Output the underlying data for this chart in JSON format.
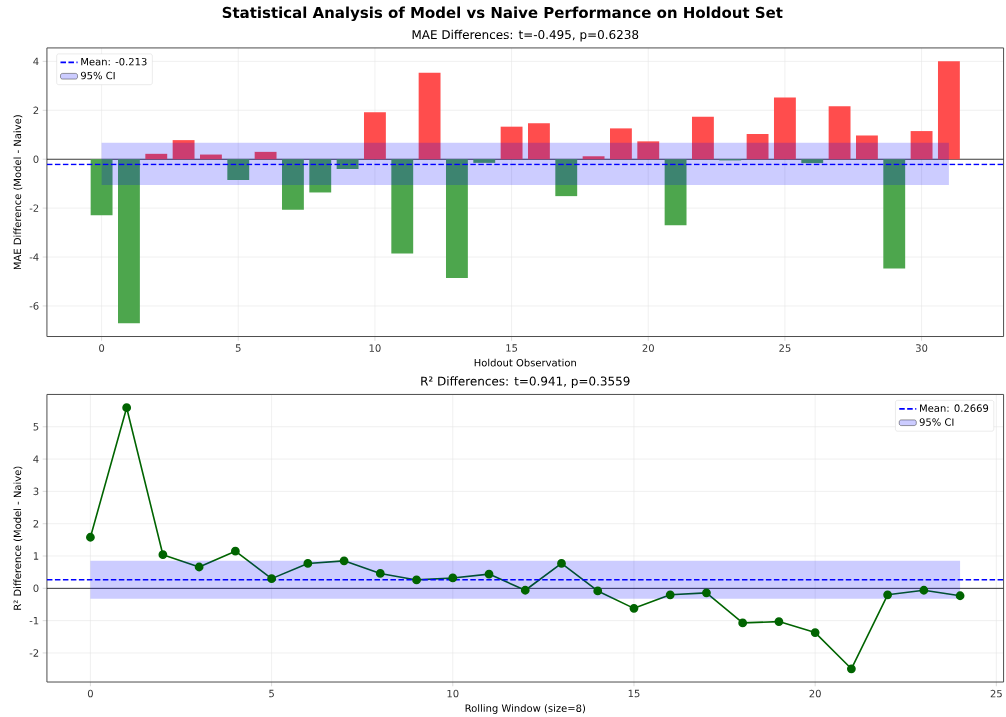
{
  "chart_data": [
    {
      "type": "bar",
      "title": "Statistical Analysis of Model vs Naive Performance on Holdout Set",
      "subtitle": "MAE Differences: t=-0.495, p=0.6238",
      "xlabel": "Holdout Observation",
      "ylabel": "MAE Difference (Model - Naive)",
      "x": [
        0,
        1,
        2,
        3,
        4,
        5,
        6,
        7,
        8,
        9,
        10,
        11,
        12,
        13,
        14,
        15,
        16,
        17,
        18,
        19,
        20,
        21,
        22,
        23,
        24,
        25,
        26,
        27,
        28,
        29,
        30,
        31
      ],
      "values": [
        -2.29,
        -6.71,
        0.22,
        0.78,
        0.19,
        -0.85,
        0.3,
        -2.07,
        -1.36,
        -0.4,
        1.92,
        -3.86,
        3.53,
        -4.86,
        -0.15,
        1.33,
        1.47,
        -1.51,
        0.12,
        1.26,
        0.73,
        -2.7,
        1.74,
        -0.05,
        1.03,
        2.52,
        -0.16,
        2.16,
        0.97,
        -4.47,
        1.15,
        4.01
      ],
      "colors": [
        "#4da64d",
        "#4da64d",
        "#ff4d4d",
        "#ff4d4d",
        "#ff4d4d",
        "#4da64d",
        "#ff4d4d",
        "#4da64d",
        "#4da64d",
        "#4da64d",
        "#ff4d4d",
        "#4da64d",
        "#ff4d4d",
        "#4da64d",
        "#4da64d",
        "#ff4d4d",
        "#ff4d4d",
        "#4da64d",
        "#ff4d4d",
        "#ff4d4d",
        "#ff4d4d",
        "#4da64d",
        "#ff4d4d",
        "#4da64d",
        "#ff4d4d",
        "#ff4d4d",
        "#4da64d",
        "#ff4d4d",
        "#ff4d4d",
        "#4da64d",
        "#ff4d4d",
        "#ff4d4d"
      ],
      "xlim": [
        -2,
        33
      ],
      "ylim": [
        -7.25,
        4.55
      ],
      "xticks": [
        0,
        5,
        10,
        15,
        20,
        25,
        30
      ],
      "yticks": [
        -6,
        -4,
        -2,
        0,
        2,
        4
      ],
      "ref_lines": [
        {
          "axis": "y",
          "value": 0,
          "color": "#000000",
          "line_style": "solid"
        },
        {
          "axis": "y",
          "value": -0.213,
          "label": "Mean: -0.213",
          "color": "#0000ff",
          "line_style": "dashed"
        }
      ],
      "bands": [
        {
          "axis": "y",
          "from": -1.05,
          "to": 0.67,
          "label": "95% CI",
          "color": "#0000ff"
        }
      ],
      "grid": true,
      "legend": "top left"
    },
    {
      "type": "line",
      "title": "R² Differences: t=0.941, p=0.3559",
      "xlabel": "Rolling Window (size=8)",
      "ylabel": "R² Difference (Model - Naive)",
      "x": [
        0,
        1,
        2,
        3,
        4,
        5,
        6,
        7,
        8,
        9,
        10,
        11,
        12,
        13,
        14,
        15,
        16,
        17,
        18,
        19,
        20,
        21,
        22,
        23,
        24
      ],
      "values": [
        1.58,
        5.59,
        1.04,
        0.66,
        1.15,
        0.3,
        0.77,
        0.85,
        0.46,
        0.26,
        0.32,
        0.44,
        -0.06,
        0.77,
        -0.08,
        -0.62,
        -0.2,
        -0.14,
        -1.07,
        -1.03,
        -1.37,
        -2.49,
        -0.2,
        -0.06,
        -0.23
      ],
      "color": "#006400",
      "marker": "circle",
      "line_style": "solid",
      "xlim": [
        -1.2,
        25.2
      ],
      "ylim": [
        -2.9,
        6.0
      ],
      "xticks": [
        0,
        5,
        10,
        15,
        20,
        25
      ],
      "yticks": [
        -2,
        -1,
        0,
        1,
        2,
        3,
        4,
        5
      ],
      "ref_lines": [
        {
          "axis": "y",
          "value": 0,
          "color": "#000000",
          "line_style": "solid"
        },
        {
          "axis": "y",
          "value": 0.2669,
          "label": "Mean: 0.2669",
          "color": "#0000ff",
          "line_style": "dashed"
        }
      ],
      "bands": [
        {
          "axis": "y",
          "from": -0.32,
          "to": 0.85,
          "label": "95% CI",
          "color": "#0000ff"
        }
      ],
      "grid": true,
      "legend": "top right"
    }
  ]
}
